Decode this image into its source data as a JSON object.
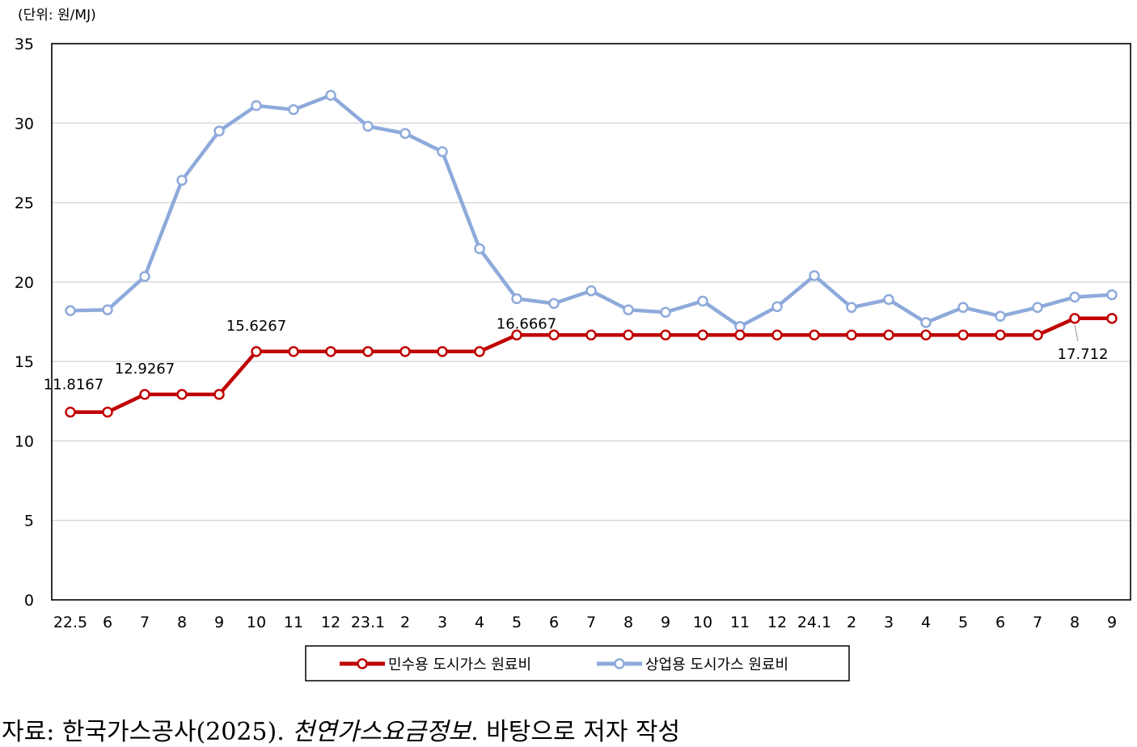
{
  "unit_label": "(단위: 원/MJ)",
  "source": {
    "prefix": "자료: 한국가스공사(2025). ",
    "italic": "천연가스요금정보",
    "suffix": ". 바탕으로 저자 작성"
  },
  "chart_data": {
    "type": "line",
    "title": "",
    "xlabel": "",
    "ylabel": "",
    "ylim": [
      0,
      35
    ],
    "yticks": [
      0,
      5,
      10,
      15,
      20,
      25,
      30,
      35
    ],
    "grid": true,
    "legend_position": "bottom",
    "categories": [
      "22.5",
      "6",
      "7",
      "8",
      "9",
      "10",
      "11",
      "12",
      "23.1",
      "2",
      "3",
      "4",
      "5",
      "6",
      "7",
      "8",
      "9",
      "10",
      "11",
      "12",
      "24.1",
      "2",
      "3",
      "4",
      "5",
      "6",
      "7",
      "8",
      "9"
    ],
    "series": [
      {
        "name": "민수용 도시가스 원료비",
        "color": "#c00000",
        "values": [
          11.8167,
          11.8167,
          12.9267,
          12.9267,
          12.9267,
          15.6267,
          15.6267,
          15.6267,
          15.6267,
          15.6267,
          15.6267,
          15.6267,
          16.6667,
          16.6667,
          16.6667,
          16.6667,
          16.6667,
          16.6667,
          16.6667,
          16.6667,
          16.6667,
          16.6667,
          16.6667,
          16.6667,
          16.6667,
          16.6667,
          16.6667,
          17.712,
          17.712
        ]
      },
      {
        "name": "상업용 도시가스 원료비",
        "color": "#8eaadb",
        "values": [
          18.2,
          18.25,
          20.35,
          26.4,
          29.5,
          31.1,
          30.85,
          31.75,
          29.8,
          29.35,
          28.2,
          22.1,
          18.95,
          18.65,
          19.45,
          18.25,
          18.1,
          18.8,
          17.2,
          18.45,
          20.4,
          18.4,
          18.9,
          17.45,
          18.4,
          17.85,
          18.4,
          19.05,
          19.2
        ]
      }
    ],
    "data_labels": [
      {
        "series": 0,
        "index": 0,
        "text": "11.8167"
      },
      {
        "series": 0,
        "index": 2,
        "text": "12.9267"
      },
      {
        "series": 0,
        "index": 5,
        "text": "15.6267"
      },
      {
        "series": 0,
        "index": 12,
        "text": "16.6667"
      },
      {
        "series": 0,
        "index": 27,
        "text": "17.712"
      }
    ]
  }
}
